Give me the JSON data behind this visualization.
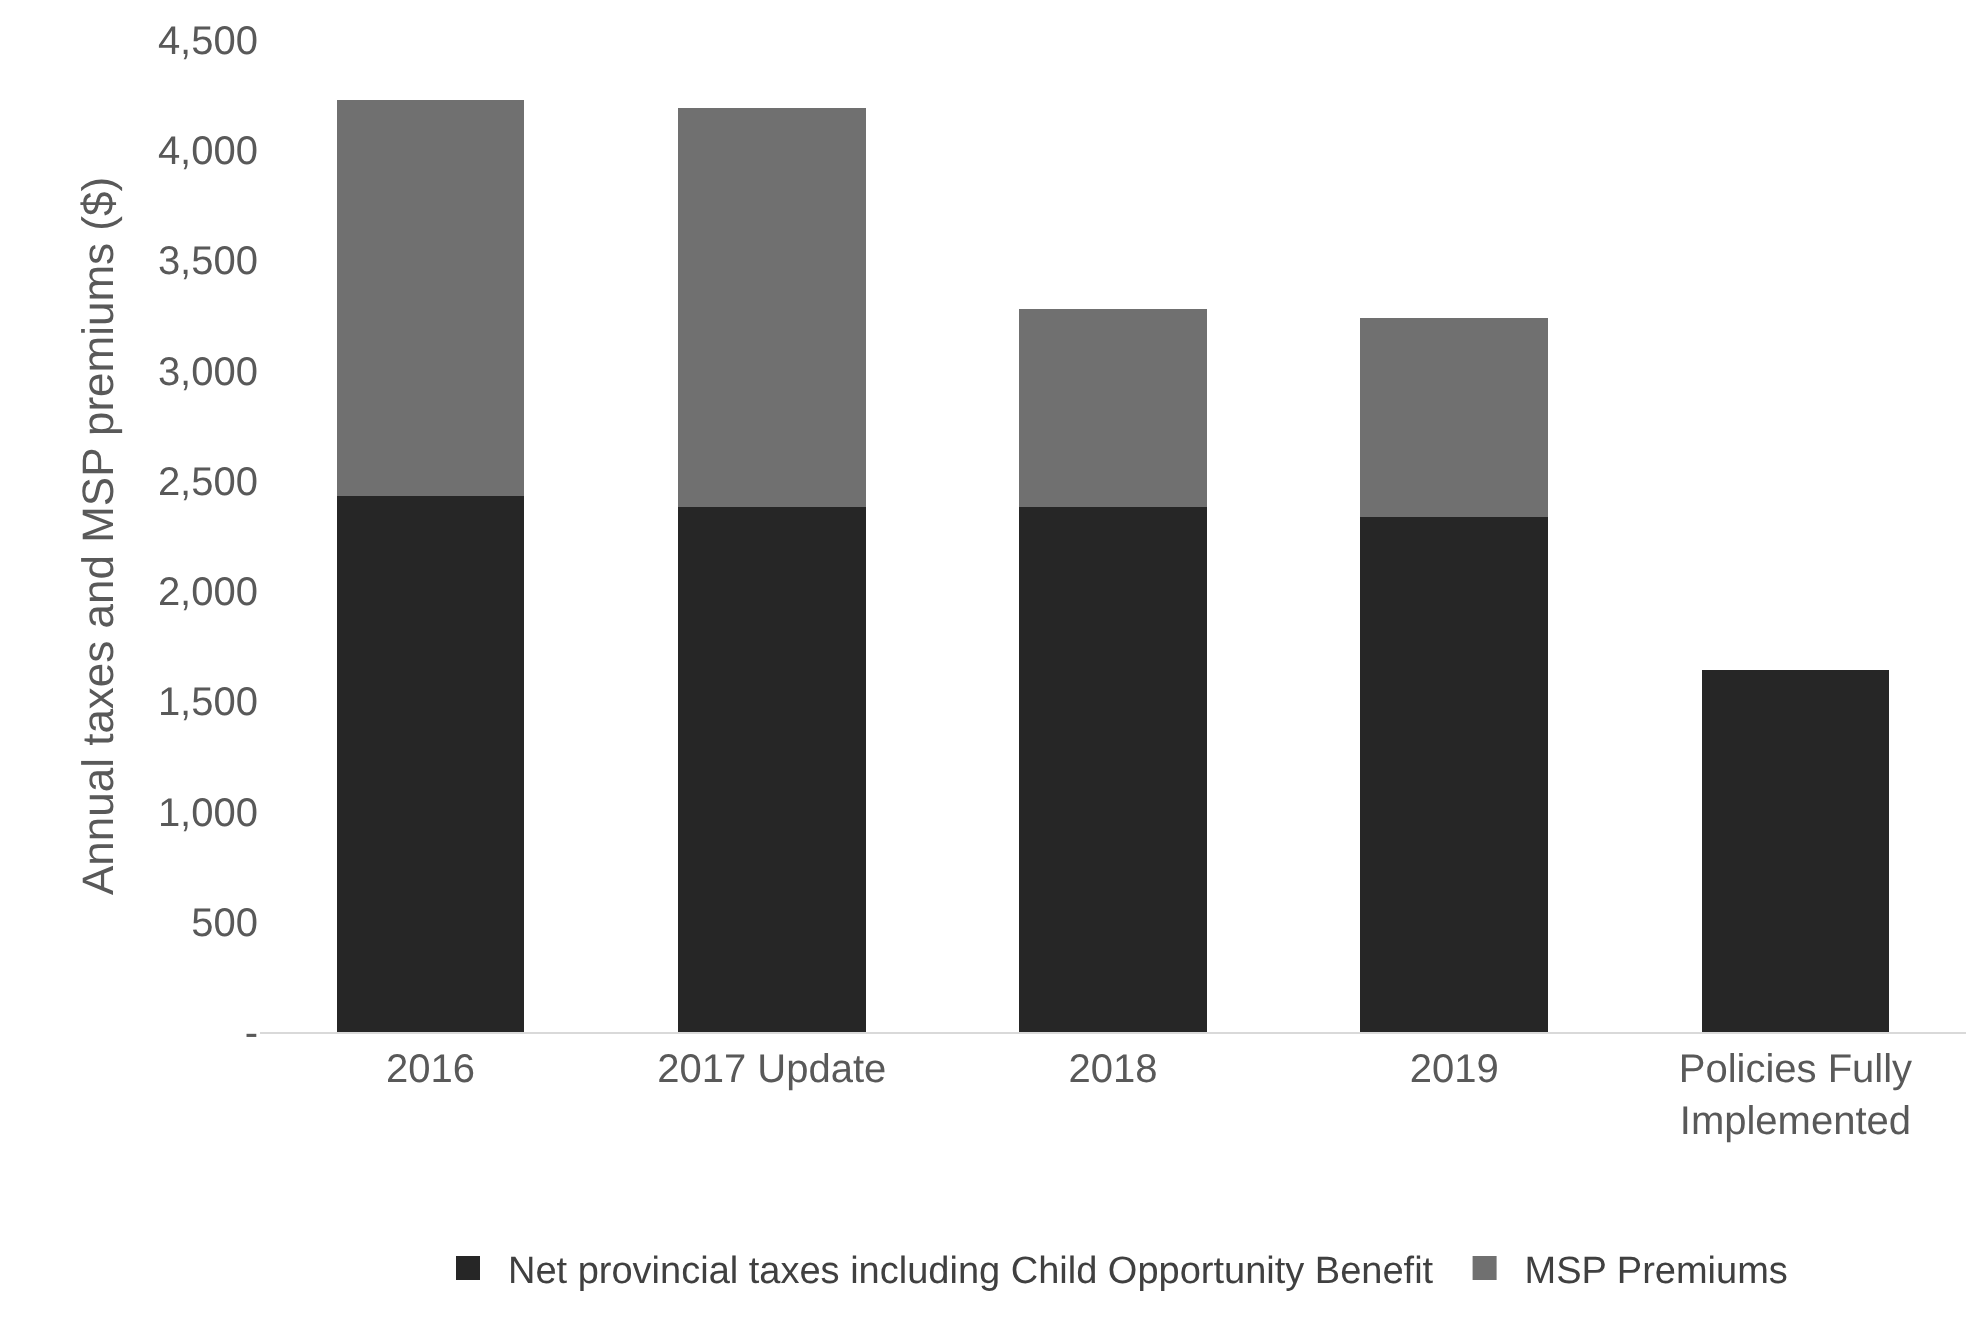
{
  "chart_data": {
    "type": "bar",
    "stacked": true,
    "ylabel": "Annual taxes and MSP premiums ($)",
    "categories": [
      "2016",
      "2017 Update",
      "2018",
      "2019",
      "Policies Fully Implemented"
    ],
    "series": [
      {
        "name": "Net provincial taxes including Child Opportunity Benefit",
        "color": "#262626",
        "values": [
          2430,
          2380,
          2380,
          2335,
          1640
        ]
      },
      {
        "name": "MSP Premiums",
        "color": "#707070",
        "values": [
          1800,
          1810,
          900,
          905,
          null
        ]
      }
    ],
    "ylim": [
      0,
      4500
    ],
    "yticks": [
      {
        "value": 0,
        "label": "-"
      },
      {
        "value": 500,
        "label": "500"
      },
      {
        "value": 1000,
        "label": "1,000"
      },
      {
        "value": 1500,
        "label": "1,500"
      },
      {
        "value": 2000,
        "label": "2,000"
      },
      {
        "value": 2500,
        "label": "2,500"
      },
      {
        "value": 3000,
        "label": "3,000"
      },
      {
        "value": 3500,
        "label": "3,500"
      },
      {
        "value": 4000,
        "label": "4,000"
      },
      {
        "value": 4500,
        "label": "4,500"
      }
    ],
    "grid": false,
    "legend": "bottom"
  }
}
